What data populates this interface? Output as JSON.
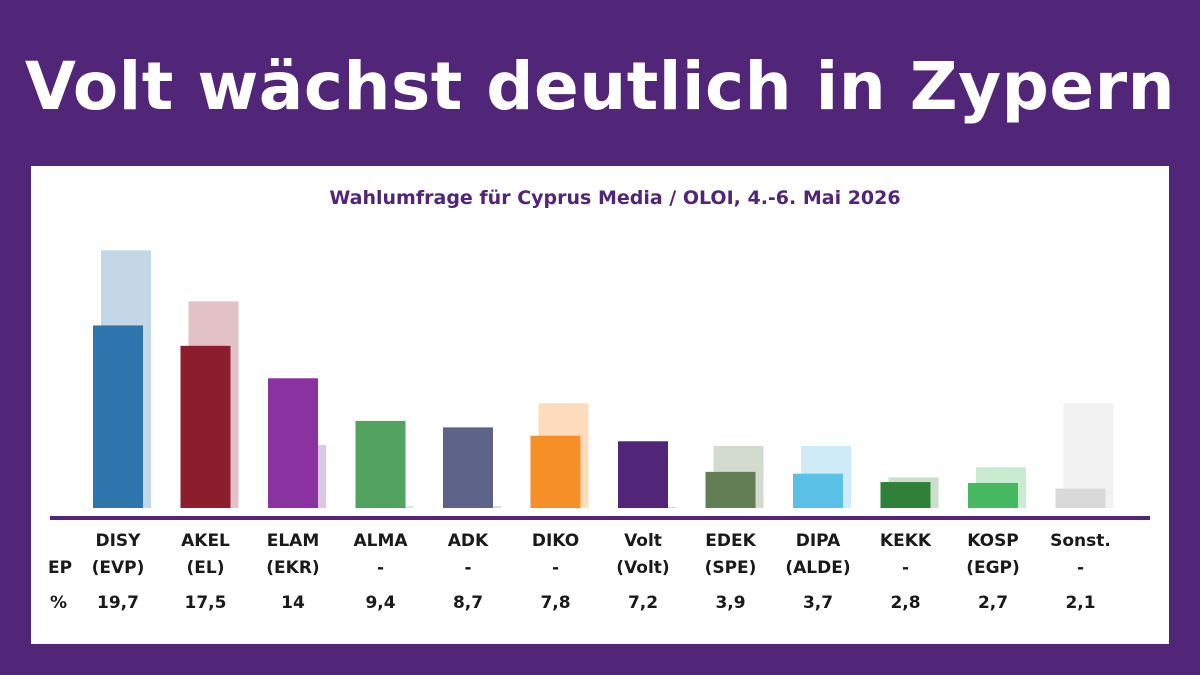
{
  "headline": "Volt wächst deutlich in Zypern",
  "chart_data": {
    "type": "bar",
    "title": "Wahlumfrage für Cyprus Media / OLOI, 4.-6. Mai 2026",
    "row_labels": {
      "ep": "EP",
      "percent": "%"
    },
    "categories": [
      "DISY",
      "AKEL",
      "ELAM",
      "ALMA",
      "ADK",
      "DIKO",
      "Volt",
      "EDEK",
      "DIPA",
      "KEKK",
      "KOSP",
      "Sonst."
    ],
    "ep_groups": [
      "(EVP)",
      "(EL)",
      "(EKR)",
      "-",
      "-",
      "-",
      "(Volt)",
      "(SPE)",
      "(ALDE)",
      "-",
      "(EGP)",
      "-"
    ],
    "value_labels": [
      "19,7",
      "17,5",
      "14",
      "9,4",
      "8,7",
      "7,8",
      "7,2",
      "3,9",
      "3,7",
      "2,8",
      "2,7",
      "2,1"
    ],
    "series": [
      {
        "values": [
          19.7,
          17.5,
          14,
          9.4,
          8.7,
          7.8,
          7.2,
          3.9,
          3.7,
          2.8,
          2.7,
          2.1
        ]
      },
      {
        "values": [
          27.8,
          22.3,
          6.8,
          0.2,
          0.2,
          11.3,
          0.1,
          6.7,
          6.7,
          3.3,
          4.4,
          11.3
        ]
      }
    ],
    "colors": [
      "#2e74ad",
      "#8b1d2c",
      "#8a33a0",
      "#52a35f",
      "#5e6389",
      "#f68f28",
      "#512577",
      "#637e55",
      "#5bc0e6",
      "#2f8038",
      "#46b861",
      "#d9d9d9"
    ],
    "previous_colors": [
      "#c4d7e7",
      "#e2c2c6",
      "#dcc7e5",
      "#d5e9d8",
      "#d6d7e1",
      "#fddcbd",
      "#d5c9de",
      "#d3dbce",
      "#ceebf7",
      "#cbdfcd",
      "#c9ebd0",
      "#f2f2f2"
    ],
    "ylim": [
      0,
      30
    ],
    "axis_color": "#512577",
    "grid": false
  }
}
